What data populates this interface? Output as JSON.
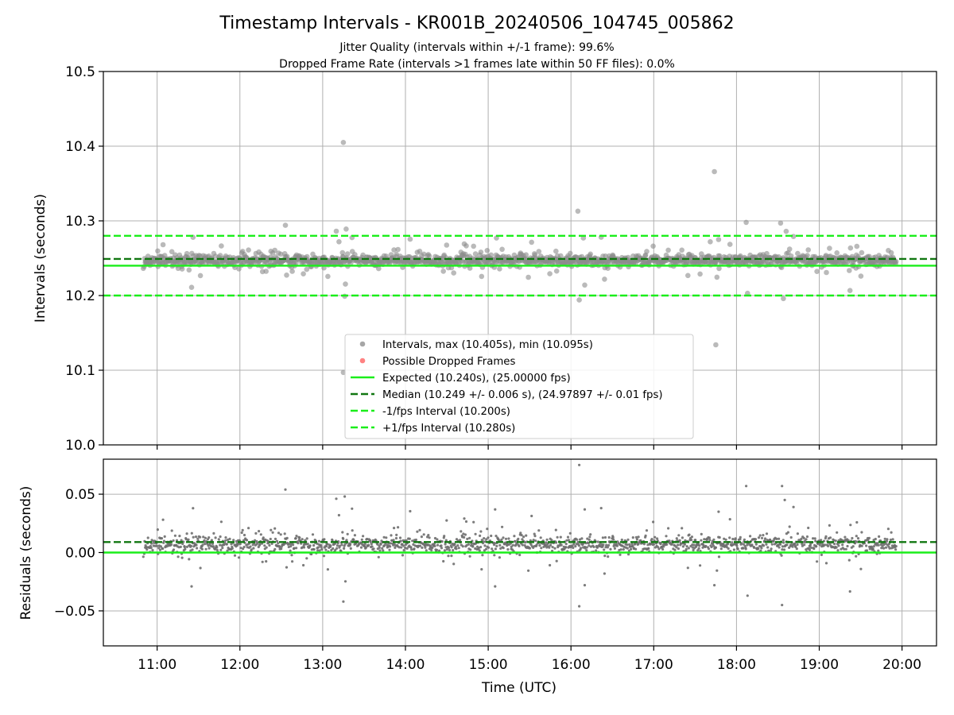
{
  "figure": {
    "title": "Timestamp Intervals - KR001B_20240506_104745_005862",
    "subtitle_line1": "Jitter Quality (intervals within +/-1 frame): 99.6%",
    "subtitle_line2": "Dropped Frame Rate (intervals >1 frames late within 50 FF files): 0.0%"
  },
  "chart_data": [
    {
      "type": "scatter",
      "panel": "top",
      "ylabel": "Intervals (seconds)",
      "xlabel": "",
      "ylim": [
        10.0,
        10.5
      ],
      "xlim": [
        "10:21",
        "20:25"
      ],
      "grid": true,
      "yticks": [
        "10.0",
        "10.1",
        "10.2",
        "10.3",
        "10.4",
        "10.5"
      ],
      "legend_position": "lower center",
      "series": [
        {
          "name": "Intervals, max (10.405s), min (10.095s)",
          "kind": "scatter",
          "color": "#808080",
          "band": {
            "x_start": "10:50",
            "x_end": "19:56",
            "center": 10.247,
            "typical_spread": 0.007
          },
          "outliers": [
            {
              "x": "13:15",
              "y": 10.405
            },
            {
              "x": "17:44",
              "y": 10.366
            },
            {
              "x": "16:05",
              "y": 10.313
            },
            {
              "x": "12:33",
              "y": 10.294
            },
            {
              "x": "18:32",
              "y": 10.297
            },
            {
              "x": "18:07",
              "y": 10.298
            },
            {
              "x": "13:17",
              "y": 10.289
            },
            {
              "x": "18:36",
              "y": 10.286
            },
            {
              "x": "11:26",
              "y": 10.278
            },
            {
              "x": "15:06",
              "y": 10.277
            },
            {
              "x": "16:09",
              "y": 10.277
            },
            {
              "x": "17:41",
              "y": 10.272
            },
            {
              "x": "17:47",
              "y": 10.275
            },
            {
              "x": "13:16",
              "y": 10.199
            },
            {
              "x": "16:06",
              "y": 10.194
            },
            {
              "x": "18:34",
              "y": 10.196
            },
            {
              "x": "18:08",
              "y": 10.203
            },
            {
              "x": "16:10",
              "y": 10.214
            },
            {
              "x": "11:25",
              "y": 10.211
            },
            {
              "x": "17:45",
              "y": 10.134
            },
            {
              "x": "13:15",
              "y": 10.097
            }
          ]
        },
        {
          "name": "Possible Dropped Frames",
          "kind": "scatter",
          "color": "#ff4d4d",
          "points": []
        },
        {
          "name": "Expected (10.240s), (25.00000 fps)",
          "kind": "hline",
          "y": 10.24,
          "color": "#1aee1a",
          "style": "solid"
        },
        {
          "name": "Median (10.249 +/- 0.006 s), (24.97897 +/- 0.01 fps)",
          "kind": "hline",
          "y": 10.249,
          "color": "#117711",
          "style": "dashed"
        },
        {
          "name": "-1/fps Interval (10.200s)",
          "kind": "hline",
          "y": 10.2,
          "color": "#1aee1a",
          "style": "dashed"
        },
        {
          "name": "+1/fps Interval (10.280s)",
          "kind": "hline",
          "y": 10.28,
          "color": "#1aee1a",
          "style": "dashed"
        }
      ]
    },
    {
      "type": "scatter",
      "panel": "bottom",
      "ylabel": "Residuals (seconds)",
      "xlabel": "Time (UTC)",
      "ylim": [
        -0.08,
        0.08
      ],
      "xlim": [
        "10:21",
        "20:25"
      ],
      "grid": true,
      "yticks": [
        "−0.05",
        "0.00",
        "0.05"
      ],
      "xticks": [
        "11:00",
        "12:00",
        "13:00",
        "14:00",
        "15:00",
        "16:00",
        "17:00",
        "18:00",
        "19:00",
        "20:00"
      ],
      "series": [
        {
          "name": "Residuals",
          "kind": "scatter",
          "color": "#707070",
          "band": {
            "x_start": "10:50",
            "x_end": "19:56",
            "center": 0.007,
            "typical_spread": 0.007
          },
          "outliers": [
            {
              "x": "16:06",
              "y": 0.075
            },
            {
              "x": "12:33",
              "y": 0.054
            },
            {
              "x": "18:07",
              "y": 0.057
            },
            {
              "x": "18:33",
              "y": 0.057
            },
            {
              "x": "13:16",
              "y": 0.048
            },
            {
              "x": "18:35",
              "y": 0.045
            },
            {
              "x": "11:26",
              "y": 0.038
            },
            {
              "x": "15:05",
              "y": 0.037
            },
            {
              "x": "16:10",
              "y": 0.037
            },
            {
              "x": "17:47",
              "y": 0.035
            },
            {
              "x": "13:15",
              "y": -0.042
            },
            {
              "x": "16:06",
              "y": -0.046
            },
            {
              "x": "18:33",
              "y": -0.045
            },
            {
              "x": "18:08",
              "y": -0.037
            },
            {
              "x": "11:25",
              "y": -0.029
            },
            {
              "x": "15:05",
              "y": -0.029
            },
            {
              "x": "16:10",
              "y": -0.028
            },
            {
              "x": "17:44",
              "y": -0.028
            }
          ]
        },
        {
          "name": "Median",
          "kind": "hline",
          "y": 0.009,
          "color": "#117711",
          "style": "dashed"
        },
        {
          "name": "Expected",
          "kind": "hline",
          "y": 0.0,
          "color": "#1aee1a",
          "style": "solid"
        }
      ]
    }
  ]
}
